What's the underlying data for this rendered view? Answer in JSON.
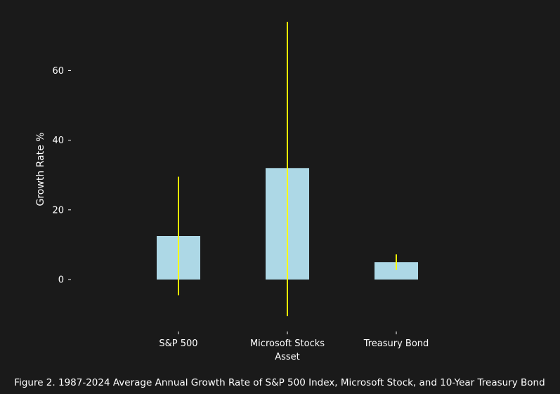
{
  "chart_data": {
    "type": "bar",
    "categories": [
      "S&P 500",
      "Microsoft Stocks",
      "Treasury Bond"
    ],
    "series": [
      {
        "values": [
          12.5,
          32.0,
          5.0
        ],
        "error_low": [
          -4.5,
          -10.5,
          2.8
        ],
        "error_high": [
          29.5,
          74.0,
          7.2
        ]
      }
    ],
    "xlabel": "Asset",
    "ylabel": "Growth Rate %",
    "yticks": [
      0,
      20,
      40,
      60
    ],
    "ylim": [
      -14,
      76
    ],
    "grid": false,
    "bar_color": "#add8e6",
    "error_color": "#ffff00",
    "background": "#1a1a1a",
    "caption": "Figure 2. 1987-2024 Average Annual Growth Rate of S&P 500 Index, Microsoft Stock, and 10-Year Treasury Bond"
  }
}
